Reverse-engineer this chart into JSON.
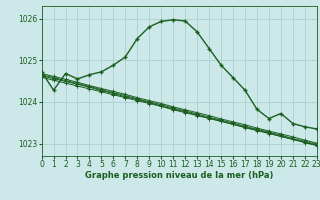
{
  "title": "Graphe pression niveau de la mer (hPa)",
  "bg_color": "#cce8e8",
  "grid_color": "#aad0d0",
  "line_color": "#1a5e20",
  "xlim": [
    0,
    23
  ],
  "ylim": [
    1022.7,
    1026.3
  ],
  "yticks": [
    1023,
    1024,
    1025,
    1026
  ],
  "xticks": [
    0,
    1,
    2,
    3,
    4,
    5,
    6,
    7,
    8,
    9,
    10,
    11,
    12,
    13,
    14,
    15,
    16,
    17,
    18,
    19,
    20,
    21,
    22,
    23
  ],
  "main_line": [
    1024.72,
    1024.28,
    1024.68,
    1024.55,
    1024.65,
    1024.72,
    1024.88,
    1025.08,
    1025.52,
    1025.8,
    1025.93,
    1025.97,
    1025.94,
    1025.68,
    1025.28,
    1024.88,
    1024.58,
    1024.28,
    1023.82,
    1023.6,
    1023.72,
    1023.48,
    1023.4,
    1023.35
  ],
  "flat_line1": [
    1024.62,
    1024.56,
    1024.49,
    1024.42,
    1024.35,
    1024.27,
    1024.2,
    1024.12,
    1024.05,
    1023.98,
    1023.9,
    1023.83,
    1023.76,
    1023.68,
    1023.61,
    1023.54,
    1023.46,
    1023.39,
    1023.32,
    1023.25,
    1023.17,
    1023.1,
    1023.03,
    1022.96
  ],
  "flat_line2": [
    1024.65,
    1024.58,
    1024.51,
    1024.44,
    1024.37,
    1024.29,
    1024.22,
    1024.15,
    1024.07,
    1024.0,
    1023.93,
    1023.85,
    1023.78,
    1023.71,
    1023.63,
    1023.56,
    1023.49,
    1023.41,
    1023.34,
    1023.27,
    1023.2,
    1023.12,
    1023.05,
    1022.98
  ],
  "flat_line3": [
    1024.59,
    1024.52,
    1024.45,
    1024.38,
    1024.31,
    1024.24,
    1024.17,
    1024.1,
    1024.03,
    1023.96,
    1023.89,
    1023.81,
    1023.74,
    1023.67,
    1023.6,
    1023.53,
    1023.46,
    1023.38,
    1023.31,
    1023.24,
    1023.17,
    1023.1,
    1023.02,
    1022.95
  ],
  "flat_line4": [
    1024.68,
    1024.61,
    1024.54,
    1024.47,
    1024.39,
    1024.32,
    1024.25,
    1024.18,
    1024.1,
    1024.03,
    1023.96,
    1023.88,
    1023.81,
    1023.74,
    1023.67,
    1023.59,
    1023.52,
    1023.45,
    1023.37,
    1023.3,
    1023.23,
    1023.16,
    1023.08,
    1023.01
  ],
  "xlabel_fontsize": 6.0,
  "tick_fontsize": 5.5
}
